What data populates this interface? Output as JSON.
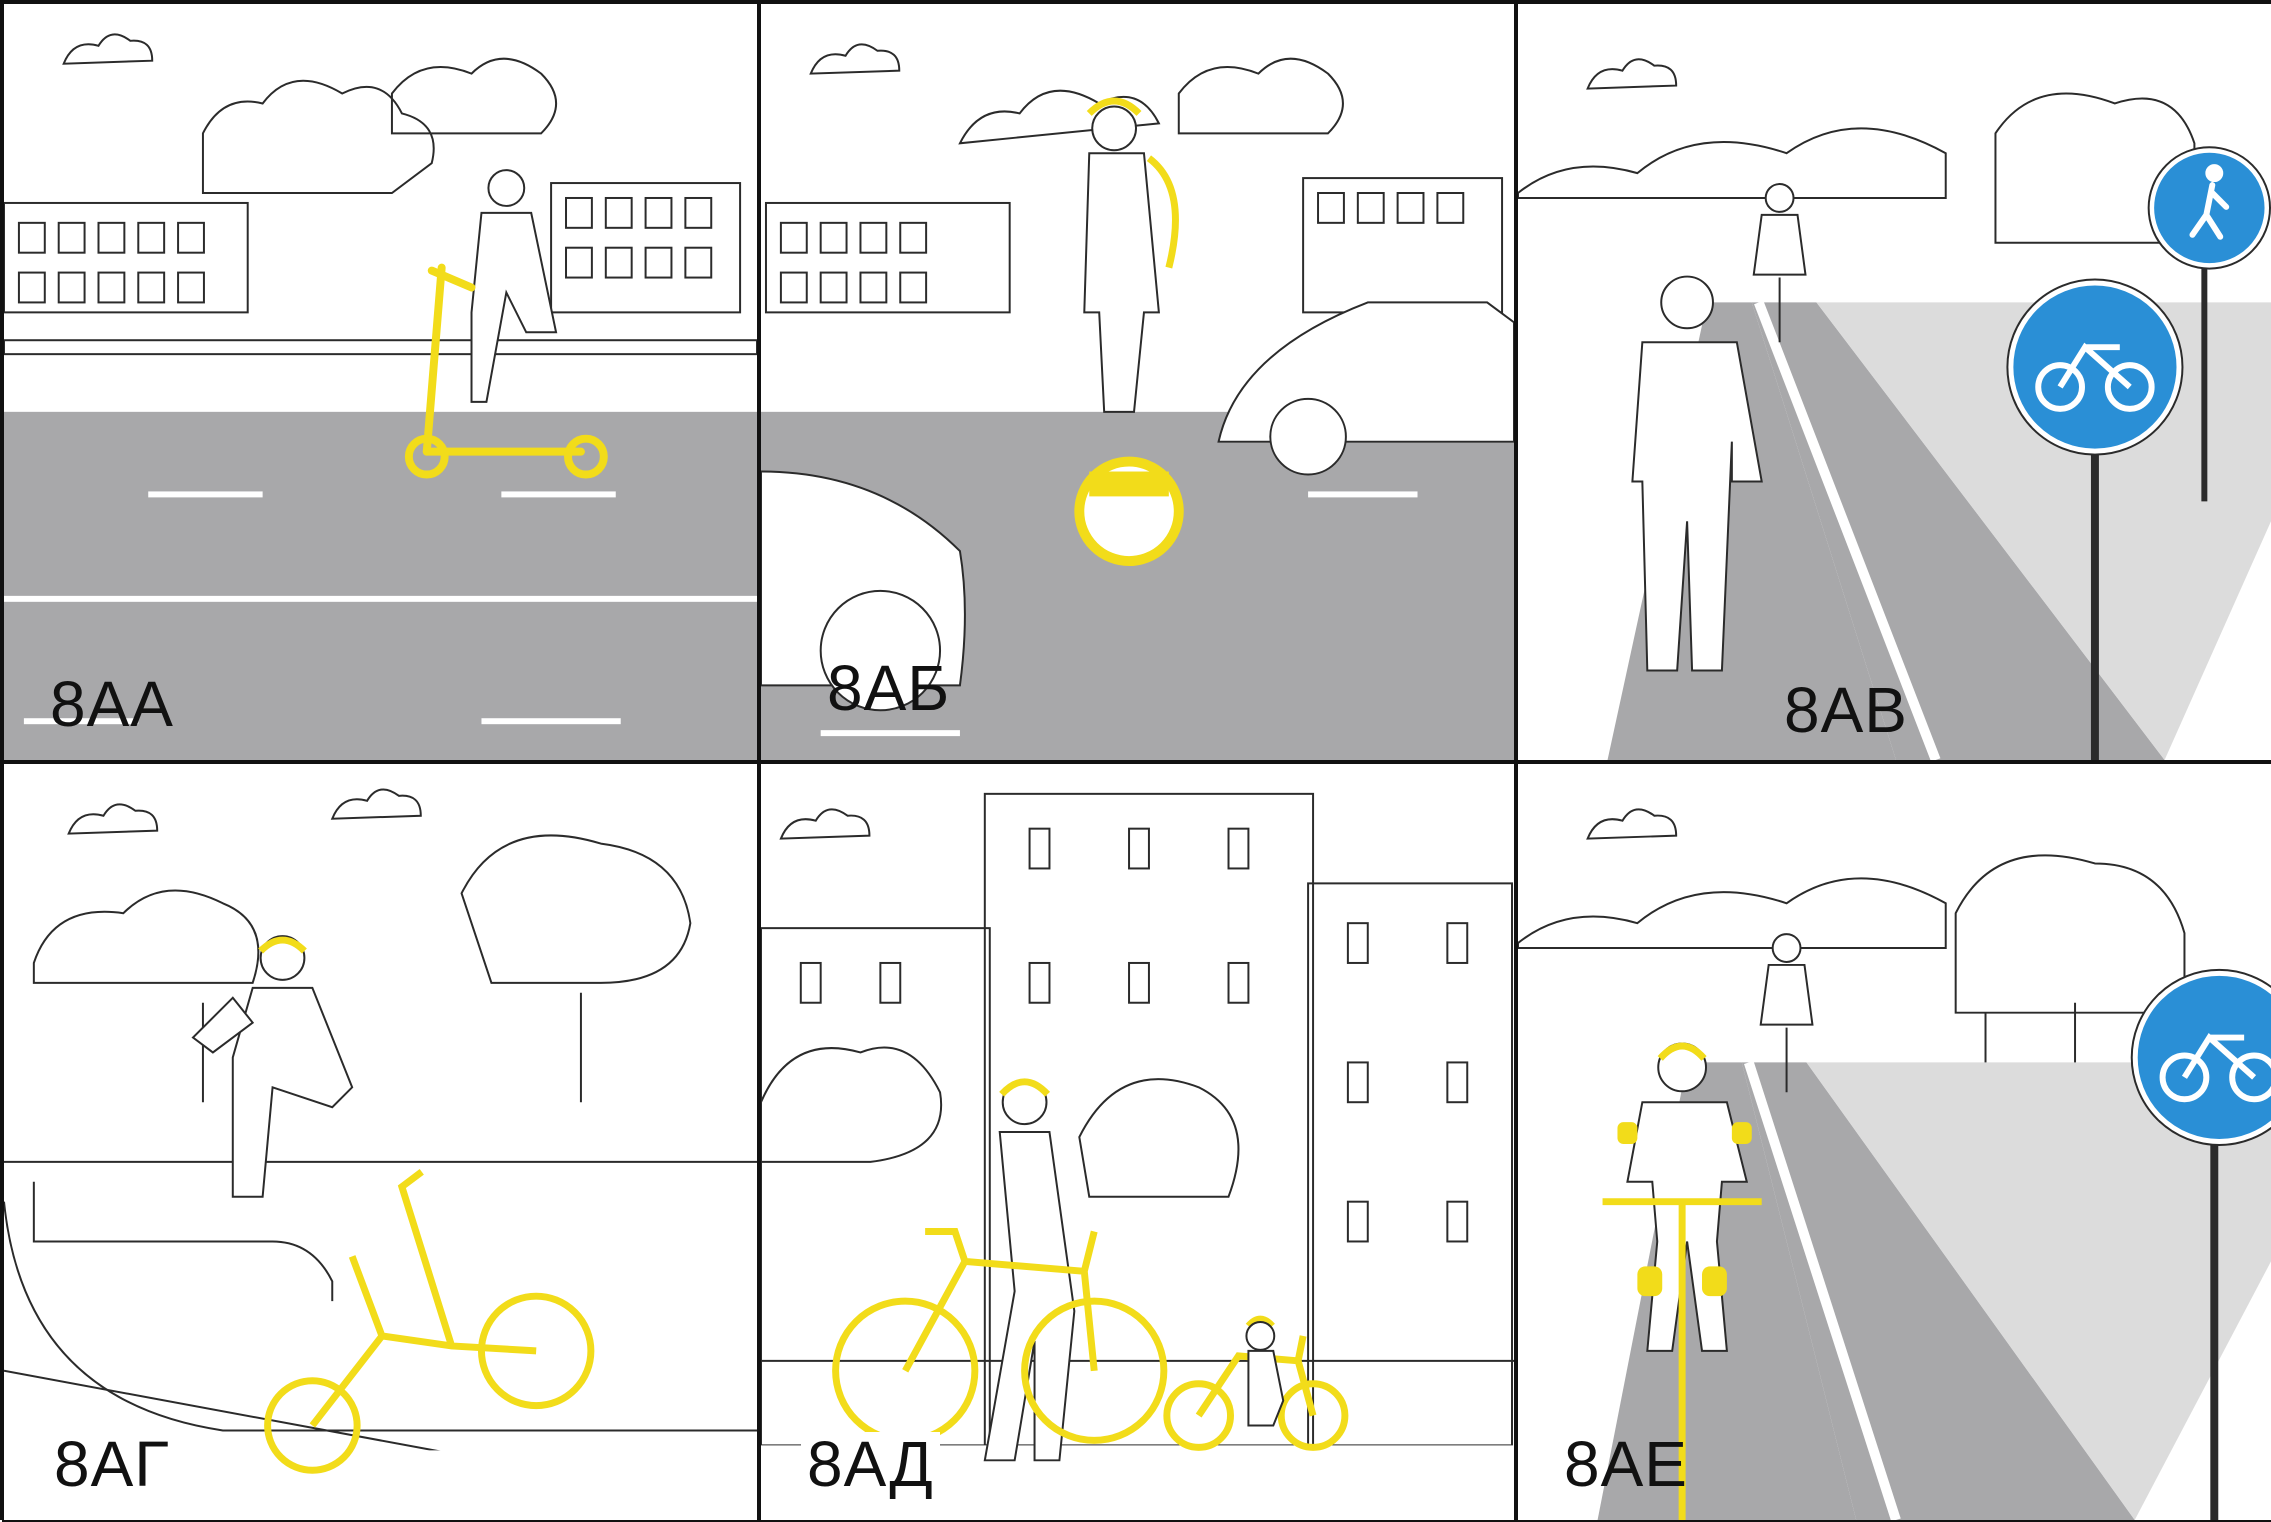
{
  "colors": {
    "highlight": "#f2dc1a",
    "road": "#a8a8aa",
    "sign_blue": "#2a8fd6",
    "line": "#2b2b2b"
  },
  "panels": [
    {
      "label": "8АА",
      "icon": "electric-scooter-icon"
    },
    {
      "label": "8АБ",
      "icon": "monowheel-icon"
    },
    {
      "label": "8АВ",
      "icon": "pedestrian-and-bicycle-signs-icon"
    },
    {
      "label": "8АГ",
      "icon": "bmx-bicycle-icon"
    },
    {
      "label": "8АД",
      "icon": "walking-with-bicycles-icon"
    },
    {
      "label": "8АЕ",
      "icon": "cyclist-on-bike-lane-icon"
    }
  ]
}
